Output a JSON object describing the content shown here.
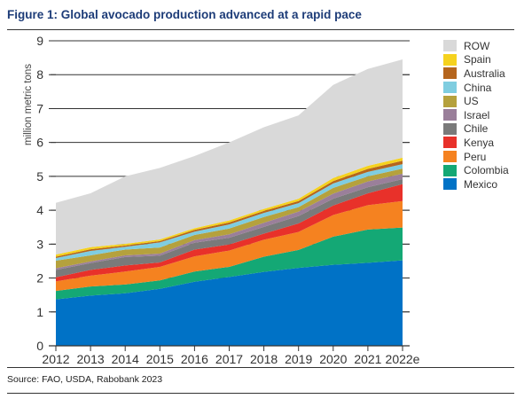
{
  "title": "Figure 1: Global avocado production advanced at a rapid pace",
  "source": "Source: FAO, USDA, Rabobank 2023",
  "chart_data": {
    "type": "area",
    "stacked": true,
    "ylabel": "million metric tons",
    "xlabel": "",
    "ylim": [
      0,
      9
    ],
    "yticks": [
      "0",
      "1",
      "2",
      "3",
      "4",
      "5",
      "6",
      "7",
      "8",
      "9"
    ],
    "categories": [
      "2012",
      "2013",
      "2014",
      "2015",
      "2016",
      "2017",
      "2018",
      "2019",
      "2020",
      "2021",
      "2022e"
    ],
    "legend_position": "right",
    "grid": true,
    "series": [
      {
        "name": "Mexico",
        "color": "#0072c6",
        "values": [
          1.37,
          1.48,
          1.55,
          1.68,
          1.89,
          2.03,
          2.18,
          2.3,
          2.39,
          2.45,
          2.52
        ]
      },
      {
        "name": "Colombia",
        "color": "#14a875",
        "values": [
          0.25,
          0.27,
          0.26,
          0.25,
          0.3,
          0.3,
          0.45,
          0.53,
          0.83,
          0.98,
          0.97
        ]
      },
      {
        "name": "Peru",
        "color": "#f58220",
        "values": [
          0.28,
          0.32,
          0.38,
          0.4,
          0.45,
          0.48,
          0.5,
          0.53,
          0.64,
          0.72,
          0.78
        ]
      },
      {
        "name": "Kenya",
        "color": "#e8312a",
        "values": [
          0.12,
          0.17,
          0.18,
          0.13,
          0.2,
          0.18,
          0.18,
          0.25,
          0.28,
          0.35,
          0.5
        ]
      },
      {
        "name": "Chile",
        "color": "#7a7a7a",
        "values": [
          0.22,
          0.2,
          0.25,
          0.2,
          0.2,
          0.2,
          0.2,
          0.22,
          0.2,
          0.18,
          0.15
        ]
      },
      {
        "name": "Israel",
        "color": "#9a7f9a",
        "values": [
          0.05,
          0.05,
          0.05,
          0.06,
          0.08,
          0.1,
          0.12,
          0.13,
          0.15,
          0.17,
          0.16
        ]
      },
      {
        "name": "US",
        "color": "#b5a13d",
        "values": [
          0.22,
          0.18,
          0.17,
          0.18,
          0.15,
          0.17,
          0.17,
          0.13,
          0.17,
          0.15,
          0.15
        ]
      },
      {
        "name": "China",
        "color": "#7fcde0",
        "values": [
          0.08,
          0.13,
          0.08,
          0.15,
          0.1,
          0.12,
          0.12,
          0.12,
          0.13,
          0.13,
          0.13
        ]
      },
      {
        "name": "Australia",
        "color": "#b5651d",
        "values": [
          0.04,
          0.05,
          0.04,
          0.04,
          0.05,
          0.06,
          0.06,
          0.06,
          0.07,
          0.09,
          0.1
        ]
      },
      {
        "name": "Spain",
        "color": "#f5d21e",
        "values": [
          0.06,
          0.06,
          0.05,
          0.05,
          0.05,
          0.06,
          0.06,
          0.07,
          0.09,
          0.09,
          0.09
        ]
      },
      {
        "name": "ROW",
        "color": "#d9d9d9",
        "values": [
          1.53,
          1.59,
          1.99,
          2.11,
          2.13,
          2.3,
          2.41,
          2.46,
          2.75,
          2.86,
          2.9
        ]
      }
    ]
  }
}
